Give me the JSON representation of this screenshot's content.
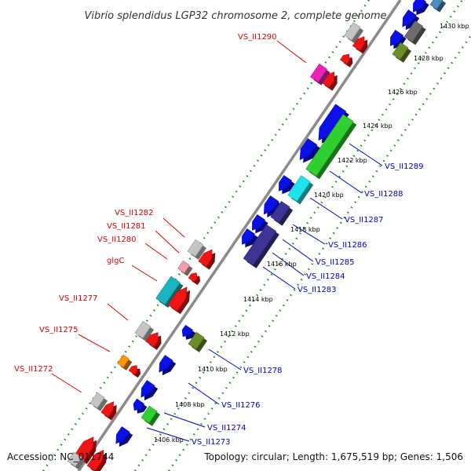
{
  "title": "Vibrio splendidus LGP32 chromosome 2, complete genome",
  "footer": {
    "accession": "Accession: NC_011744",
    "stats": "Topology: circular; Length: 1,675,519 bp; Genes: 1,506"
  },
  "colors": {
    "backbone": "#8a8a8a",
    "tick_dots": "#1f8a1f",
    "forward_label": "#e00000",
    "reverse_label": "#0000c8",
    "blue": "#0a10e6",
    "navy": "#3e3496",
    "cyan": "#1ee3ec",
    "teal": "#1ab4be",
    "green": "#2fd02f",
    "olive": "#6a8e2a",
    "red": "#f01414",
    "grey": "#c4c4c4",
    "pink": "#ef9fac",
    "magenta": "#ee22b4",
    "orange": "#ff9508",
    "steel": "#4f8cbf"
  },
  "kbp_ticks": [
    "1406 kbp",
    "1408 kbp",
    "1410 kbp",
    "1412 kbp",
    "1414 kbp",
    "1416 kbp",
    "1418 kbp",
    "1420 kbp",
    "1422 kbp",
    "1424 kbp",
    "1426 kbp",
    "1428 kbp",
    "1430 kbp"
  ],
  "forward_labels": [
    "VS_II1290",
    "VS_II1282",
    "VS_II1281",
    "VS_II1280",
    "glgC",
    "VS_II1277",
    "VS_II1275",
    "VS_II1272"
  ],
  "reverse_labels": [
    "VS_II1289",
    "VS_II1288",
    "VS_II1287",
    "VS_II1286",
    "VS_II1285",
    "VS_II1284",
    "VS_II1283",
    "VS_II1278",
    "VS_II1276",
    "VS_II1274",
    "VS_II1273"
  ]
}
